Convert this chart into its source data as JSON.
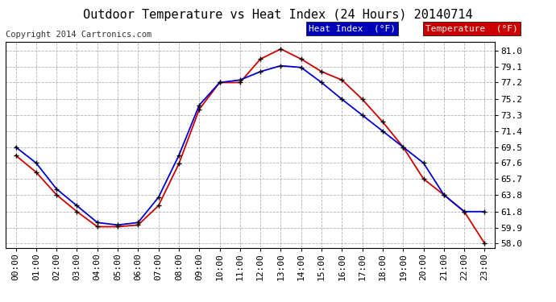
{
  "title": "Outdoor Temperature vs Heat Index (24 Hours) 20140714",
  "copyright": "Copyright 2014 Cartronics.com",
  "background_color": "#ffffff",
  "plot_bg_color": "#ffffff",
  "grid_color": "#aaaaaa",
  "hours": [
    "00:00",
    "01:00",
    "02:00",
    "03:00",
    "04:00",
    "05:00",
    "06:00",
    "07:00",
    "08:00",
    "09:00",
    "10:00",
    "11:00",
    "12:00",
    "13:00",
    "14:00",
    "15:00",
    "16:00",
    "17:00",
    "18:00",
    "19:00",
    "20:00",
    "21:00",
    "22:00",
    "23:00"
  ],
  "heat_index": [
    69.5,
    67.6,
    64.5,
    62.5,
    60.5,
    60.2,
    60.5,
    63.5,
    68.5,
    74.5,
    77.2,
    77.5,
    78.5,
    79.2,
    79.0,
    77.2,
    75.2,
    73.3,
    71.4,
    69.5,
    67.6,
    63.8,
    61.8,
    61.8
  ],
  "temperature": [
    68.5,
    66.5,
    63.8,
    61.8,
    60.0,
    60.0,
    60.2,
    62.5,
    67.5,
    74.0,
    77.2,
    77.2,
    80.0,
    81.2,
    80.0,
    78.5,
    77.5,
    75.2,
    72.5,
    69.5,
    65.7,
    63.8,
    61.8,
    58.0
  ],
  "ylim": [
    57.5,
    82.0
  ],
  "yticks": [
    58.0,
    59.9,
    61.8,
    63.8,
    65.7,
    67.6,
    69.5,
    71.4,
    73.3,
    75.2,
    77.2,
    79.1,
    81.0
  ],
  "heat_color": "#0000cc",
  "temp_color": "#cc0000",
  "marker_color": "#000000",
  "legend_heat_bg": "#0000bb",
  "legend_temp_bg": "#cc0000",
  "title_fontsize": 11,
  "tick_fontsize": 8,
  "copyright_fontsize": 7.5
}
